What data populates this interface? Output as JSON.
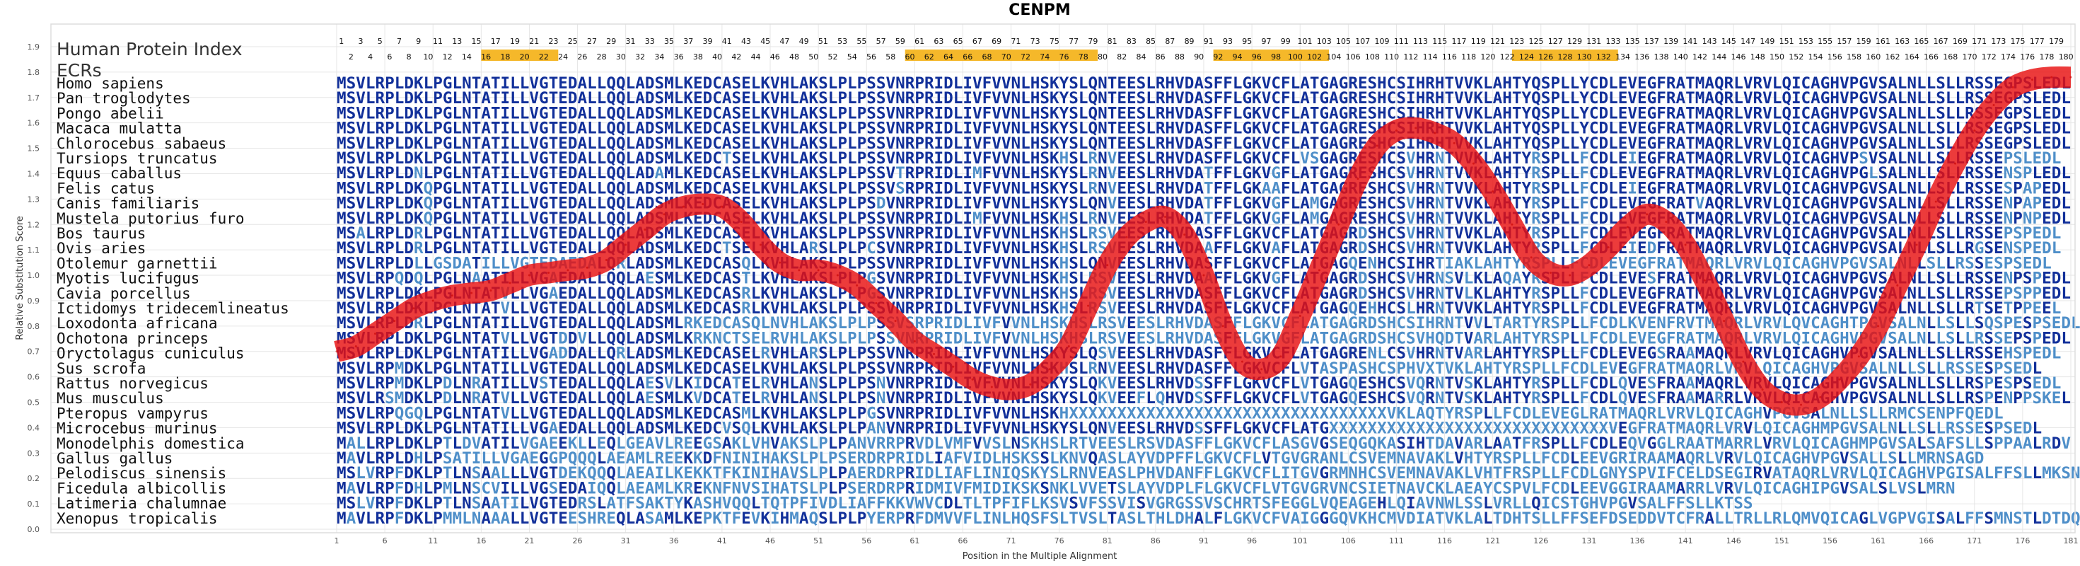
{
  "chart_data": {
    "type": "line",
    "title": "CENPM",
    "xlabel": "Position in the Multiple Alignment",
    "ylabel": "Relative Substitution Score",
    "xlim": [
      1,
      181
    ],
    "ylim": [
      0.0,
      1.9
    ],
    "x_ticks": [
      1,
      6,
      11,
      16,
      21,
      26,
      31,
      36,
      41,
      46,
      51,
      56,
      61,
      66,
      71,
      76,
      81,
      86,
      91,
      96,
      101,
      106,
      111,
      116,
      121,
      126,
      131,
      136,
      141,
      146,
      151,
      156,
      161,
      166,
      171,
      176,
      181
    ],
    "y_ticks": [
      0.0,
      0.1,
      0.2,
      0.3,
      0.4,
      0.5,
      0.6,
      0.7,
      0.8,
      0.9,
      1.0,
      1.1,
      1.2,
      1.3,
      1.4,
      1.5,
      1.6,
      1.7,
      1.8,
      1.9
    ],
    "y_tick_labels": [
      "0.0",
      "0.1",
      "0.2",
      "0.3",
      "0.4",
      "0.5",
      "0.6",
      "0.7",
      "0.8",
      "0.9",
      "1.0",
      "1.1",
      "1.2",
      "1.3",
      "1.4",
      "1.5",
      "1.6",
      "1.7",
      "1.8",
      "1.9"
    ],
    "grid": true,
    "header_label": "Human Protein Index",
    "ecr_label": "ECRs",
    "ecr_regions": [
      [
        16,
        23
      ],
      [
        60,
        79
      ],
      [
        92,
        103
      ],
      [
        123,
        133
      ]
    ],
    "residue_index": [
      1,
      2,
      3,
      4,
      5,
      6,
      7,
      8,
      9,
      10,
      11,
      12,
      13,
      14,
      15,
      16,
      17,
      18,
      19,
      20,
      21,
      22,
      23,
      24,
      25,
      26,
      27,
      28,
      29,
      30,
      31,
      32,
      33,
      34,
      35,
      36,
      37,
      38,
      39,
      40,
      41,
      42,
      43,
      44,
      45,
      46,
      47,
      48,
      49,
      50,
      51,
      52,
      53,
      54,
      55,
      56,
      57,
      58,
      59,
      60,
      61,
      62,
      63,
      64,
      65,
      66,
      67,
      68,
      69,
      70,
      71,
      72,
      73,
      74,
      75,
      76,
      77,
      78,
      79,
      80,
      81,
      82,
      83,
      84,
      85,
      86,
      87,
      88,
      89,
      90,
      91,
      92,
      93,
      94,
      95,
      96,
      97,
      98,
      99,
      100,
      101,
      102,
      103,
      104,
      105,
      106,
      107,
      108,
      109,
      110,
      111,
      112,
      113,
      114,
      115,
      116,
      117,
      118,
      119,
      120,
      121,
      122,
      123,
      124,
      125,
      126,
      127,
      128,
      129,
      130,
      131,
      132,
      133,
      134,
      135,
      136,
      137,
      138,
      139,
      140,
      141,
      142,
      143,
      144,
      145,
      146,
      147,
      148,
      149,
      150,
      151,
      152,
      153,
      154,
      155,
      156,
      157,
      158,
      159,
      160,
      161,
      162,
      163,
      164,
      165,
      166,
      167,
      168,
      169,
      170,
      171,
      172,
      173,
      174,
      175,
      176,
      177,
      178,
      179,
      180
    ],
    "species": [
      {
        "name": "Homo sapiens",
        "sequence": "MSVLRPLDKLPGLNTATILLVGTEDALLQQLADSMLKEDCASELKVHLAKSLPLPSSVNRPRIDLIVFVVNLHSKYSLQNTEESLRHVDASFFLGKVCFLATGAGRESHCSIHRHTVVKLAHTYQSPLLYCDLEVEGFRATMAQRLVRVLQICAGHVPGVSALNLLSLLRSSEGPSLEDL"
      },
      {
        "name": "Pan troglodytes",
        "sequence": "MSVLRPLDKLPGLNTATILLVGTEDALLQQLADSMLKEDCASELKVHLAKSLPLPSSVNRPRIDLIVFVVNLHSKYSLQNTEESLRHVDASFFLGKVCFLATGAGRESHCSIHRHTVVKLAHTYQSPLLYCDLEVEGFRATMAQRLVRVLQICAGHVPGVSALNLLSLLRSSEGPSLEDL"
      },
      {
        "name": "Pongo abelii",
        "sequence": "MSVLRPLDKLPGLNTATILLVGTEDALLQQLADSMLKEDCASELKVHLAKSLPLPSSVNRPRIDLIVFVVNLHSKYSLQNTEESLRHVDASFFLGKVCFLATGAGRESHCSIHRHTVVKLAHTYQSPLLYCDLEVEGFRATMAQRLVRVLQICAGHVPGVSALNLLSLLRSSEGPSLEDL"
      },
      {
        "name": "Macaca mulatta",
        "sequence": "MSVLRPLDKLPGLNTATILLVGTEDALLQQLADSMLKEDCASELKVHLAKSLPLPSSVNRPRIDLIVFVVNLHSKYSLQNTEESLRHVDASFFLGKVCFLATGAGRESHCSIHRHTVVKLAHTYQSPLLYCDLEVEGFRATMAQRLVRVLQICAGHVPGVSALNLLSLLRSSEGPSLEDL"
      },
      {
        "name": "Chlorocebus sabaeus",
        "sequence": "MSVLRPLDKLPGLNTATILLVGTEDALLQQLADSMLKEDCASELKVHLAKSLPLPSSVNRPRIDLIVFVVNLHSKYSLQNTEESLRHVDASFFLGKVCFLATGAGRESHCSIHRHTVVKLAHTYQSPLLYCDLEVEGFRATMAQRLVRVLQICAGHVPGVSALNLLSLLRSSEGPSLEDL"
      },
      {
        "name": "Tursiops truncatus",
        "sequence": "MSVLRPLDKLPGLNTATILLVGTEDALLQQLADSMLKEDCTSELKVHLAKSLPLPSSVNRPRIDLIVFVVNLHSKHSLRNVEESLRHVDASFFLGKVCFLVSGAGRESHCSVHRNTVVKLAHTYRSPLLFCDLEIEGFRATMAQRLVRVLQICAGHVPSVSALNLLSLLRSSEPSLEDL"
      },
      {
        "name": "Equus caballus",
        "sequence": "MSVLRPLDNLPGLNTATILLVGTEDALLQQLADAMLKEDCASELKVHLAKSLPLPSSVTRPRIDLIMFVVNLHSKYSLRNVEESLRHVDATFFLGKVGFLATGAGRESHCSVHRNTVVKLAHTYRSPLLFCDLEVEGFRATMAQRLVRVLQICAGHVPGLSALNLLSLLRSSENSPLEDL"
      },
      {
        "name": "Felis catus",
        "sequence": "MSVLRPLDKQPGLNTATILLVGTEDALLQQLADSMLKEDCASELKVHLAKSLPLPSSVSRPRIDLIVFVVNLHSKYSLRNVEESLRHVDATFFLGKAAFLATGAGRESHCSVHRNTVVKLAHTYRSPLLFCDLEIEGFRATMAQRLVRVLQICAGHVPGVSALNLLSLLRSSESPAPEDL"
      },
      {
        "name": "Canis familiaris",
        "sequence": "MSVLRPLDKQPGLNTATILLVGTEDALLQQLADSMLKEDCASELKVHLAKSLPLPSDVNRPRIDLIVFVVNLHSKYSLQNVEESLRHVDATFFLGKVGFLAMGAGRESHCSVHRNTVVKLAHTYRSPLLFCDLEVEGFRATVAQRLVRVLQICAGHVPGVSALNLLSLLRSSENPAPEDL"
      },
      {
        "name": "Mustela putorius furo",
        "sequence": "MSVLRPLDKQPGLNTATILLVGTEDALLQQLADSMLKEDCASELKVHLAKSLPLPSSVNRPRIDLIMFVVNLHSKHSLRNVEESLRHVDATFFLGKVGFLAMGAGRESHCSVHRNTVVKLAHTYRSPLLFCDLEVEGFRATMAQRLVRVLQICAGHVPGVSALNLLSLLRSSENPNPEDL"
      },
      {
        "name": "Bos taurus",
        "sequence": "MSALRPLDRLPGLNTATILLVGTEDALLQQLADSMLKEDCASELKVHLAKSLPLPSSVNRPRIDLIVFVVNLHSKHSLRSVEESLRHVDASFFLGKVCFLATGAGRDSHCSVHRNTVVKLAHTYRSPLLFCDLEVEGFRATMAQRLVRVLQICAGHVPGVSALNLLSLLRSSEPSPEDL"
      },
      {
        "name": "Ovis aries",
        "sequence": "MSVLRPLDRLPGLNTATILLVGTEDALLQQLADSMLKEDCTSELKVHLARSLPLPCSVNRPRIDLIVFVVNLHSKHSLRSVEESLRHVDAAFFLGKVAFLATGAGRDSHCSVHRNTVVKLAHTYRSPLLFCDLEIEDFRATMAQRLVRVLQICAGHVPGVSALNLLSLLRGSENSPEDL"
      },
      {
        "name": "Otolemur garnettii",
        "sequence": "MSVLRPLDLLGSDATILLVGTEDAEDALQRLADSMLKEDCASQLKVHLAKSLPLPSSVNRPRIDLIVFVVNLHSKHSLQNVEESLRHVDASFFLGKVCFLATGAGQENHCSIHRTIAKLAHTYRSPLLFCDLEVEGFRATMAQRLVRVLQICAGHVPGVSALNLLSLLRSSESPSEDL"
      },
      {
        "name": "Myotis lucifugus",
        "sequence": "MSVLRPQDQLPGLNAATILLVGAEDALLQQLAESMLKEDCASTLKVHLAKSLPLPGSVNRPRIDLIVFVVNLHSKHSLRSVEESLRHVDAAFFLGKVGFLATGAGRDSHCSVHRNSVLKLAQAYRSPLLFCDLEVESFRATMAQRLVRVLQICAGHVPGVSALNLLSLLRSSENPSPEDL"
      },
      {
        "name": "Cavia porcellus",
        "sequence": "MSVLRPLDKLPGLNTATVLLVGAEDALLQQLADSMLKEDCASRLKVHLAKSLPLPGSVNRPRIDLIVFVVNLHSKHSLRSVEESLRHVDASFFLGKVCFLATGAGRDSHCSVHRNTVLKLAHTYRSPLLFCDLEVEGFRATMAQRLVRVLQICAGHVPGVSALNLLSLLRSSEPSPPEDL"
      },
      {
        "name": "Ictidomys tridecemlineatus",
        "sequence": "MSVLRPLDKLPGLNTATVLLVGTEDALLQQLADSMLKEDCASRLKVHLAKSLPLPSSVNRPRIDLIVFVVNLHSKHSLRSVEESLRHVDASFFLGKVCFLATGAGQEHHCSLHRNTVVKLAHTYRSPLLFCDLEVEGFRATMAQRLVRVLQICAGHVPGVSALNLLSLLRTSETPPEEL"
      },
      {
        "name": "Loxodonta africana",
        "sequence": "MSVLRPLDRLPGLNTATILLVGTEDALLQQLADSMLRKEDCASQLNVHLAKSLPLPSSVSRPRIDLIVFVVNLHSKHSLRSVEESLRHVDASFFLGKVCFLATGAGRDSHCSIHRNTVVLTARTYRSPLLFCDLKVENFRVTMAQRLVRVLQVCAGHTPGVSALNLLSLLSQSPESPSEDL"
      },
      {
        "name": "Ochotona princeps",
        "sequence": "MSVLRPLDKLPGLNTATVLLVGTDDVLLQQLADSMLKRKNCTSELRVHLAKSLPLPSSVNRPRIDLIVFVVNLHSKHSLRSVEESLRHVDASFFLGKVGFLATGAGRDSHCSVHQDTVARLAHTYRSPLLFCDLEVEGFRATMAQRLVRVLQICAGHVPGVSALNLLSLLRSSEPSPEDL"
      },
      {
        "name": "Oryctolagus cuniculus",
        "sequence": "MSVLRPLDKLPGLNTATILLVGADDALLQRLADSMLKEDCASELRVHLARSLPLPSSVNRPRIDLIVFVVNLHSKYSLQSVEESLRHVDASFFLGKVCFLATGAGRENLCSVHRNTVARLAHTYRSPLLFCDLEVEGSRAAMAQRLVRVLQICAGHVPGVSALNLLSLLRSSEHSPEDL"
      },
      {
        "name": "Sus scrofa",
        "sequence": "MSVLRPMDKLPGLNTATILLVGTEDALLQQLADSMLKEDCASELKVHLAKSLPLPSSVNRPRIDLIVFVVNLHSKHSLRNVEESLRHVDASFFLGKVCFLVTASPASHCSPHVXTVKLAHTYRSPLLFCDLEVEGFRATMAQRLVRVLQICAGHVPGVSALNLLSLLRSSESPSEDL"
      },
      {
        "name": "Rattus norvegicus",
        "sequence": "MSVLRPMDKLPDLNRATILLVSTEDALLQQLAESVLKIDCATELRVHLANSLPLPSNVNRPRIDLIVFVVNLHSKYSLQKVEESLRHVDSSFFLGKVCFLVTGAGQESHCSVQRNTVSKLAHTYRSPLLFCDLQVESFRAAMAQRLVRVLQICAGHVPGVSALNLLSLLRSPESPSEDL"
      },
      {
        "name": "Mus musculus",
        "sequence": "MSVLRSMDKLPDLNRATVLLVGTEDALLQQLAESMLKVDCATELRVHLANSLPLPSNVNRPRIDLIVFVVNLHSKYSLQKVEEFLQHVDSSFFLGKVCFLVTGAGQESHCSVQRNTVSKLAHTYRSPLLFCDLQVESFRAAMARRLVRVLQICAGHVPGVSALNLLSLLRSPENPPSKEL"
      },
      {
        "name": "Pteropus vampyrus",
        "sequence": "MSVLRPQGQLPGLNTATVLLVGTEDALLQQLADSMLKEDCASMLKVHLAKSLPLPGSVNRPRIDLIVFVVNLHSKHXXXXXXXXXXXXXXXXXXXXXXXXXXXXXXXXXVKLAQTYRSPLLFCDLEVEGLRATMAQRLVRVLQICAGHVPGVSALNLLSLLRMCSENPFQEDL"
      },
      {
        "name": "Microcebus murinus",
        "sequence": "MSVLRPLDKLPGLNTATILLVGAEDALLQQLADSMLKEDCVSQLKVHLAKSLPLPANVNRPRIDLIVFVVNLHSKYSLQNVEESLRHVDSSFFLGKVCFLATGXXXXXXXXXXXXXXXXXXXXXXXXXXXXXVEGFRATMAQRLVRVLQICAGHMPGVSALNLLSLLRSSESPSEDL"
      },
      {
        "name": "Monodelphis domestica",
        "sequence": "MALLRPLDKLPTLDVATILVGAEEKLLEQLGEAVLREEGSAKLVHVAKSLPLPANVRRPRVDLVMFVVSLNSKHSLRTVEESLRSVDASFFLGKVCFLASGVGSEQGQKASIHTDAVARLAATFRSPLLFCDLEQVGGLRAATMARRLVRVLQICAGHMPGVSALSAFSLLSPPAALRDV"
      },
      {
        "name": "Gallus gallus",
        "sequence": "MAVLRPLDHLPSATILLVGAEGGPQQQLAEAMLREEKKDFNINIHAKSLPLPSERDRPRIDLIAFVIDLHSKSSLKNVQASLAYVDPFFLGKVCFLVTGVGRANLCSVEMNAVAKLVHTYRSPLLFCDLEEVGRIRAAMAQRLVRVLQICAGHVPGVSALLSLLMRNSAGD"
      },
      {
        "name": "Pelodiscus sinensis",
        "sequence": "MSLVRPFDKLPTLNSAALLLVGTDEKQQQLAEAILKEKKTFKINIHAVSLPLPAERDRPRIDLIAFLINIQSKYSLRNVEASLPHVDANFFLGKVCFLITGVGRMNHCSVEMNAVAKLVHTFRSPLLFCDLGNYSPVIFCELDSEGIRVATAQRLVRVLQICAGHVPGISALFFSLLMKSNSIDE"
      },
      {
        "name": "Ficedula albicollis",
        "sequence": "MAVLRPFDHLPMLNSCVILLVGSEDAIQQLAEAMLKREKNFNVSIHATSLPLPSERDRPRIDMIVFMIDIKSKSNKLVVETSLAYVDPLFLGKVCFLVTGVGRVNCSIETNAVCKLAEAYCSPVLFCDLEEVGGIRAAMARRLVRVLQICAGHIPGVSALSLVSLMRN"
      },
      {
        "name": "Latimeria chalumnae",
        "sequence": "MSLVRPFDKLPTLNSAATILVGTEDRSLATFSAKTYKASHVQQLTQTPFIVDLIAFFKKVWVCDLTLTPFIFLKSVSVFSSVISVGRGSSVSCHRTSFEGGLVQEAGEHLQIAVNWLSSLVRLLQICSTGHVPGVSALFFSLLKTSS"
      },
      {
        "name": "Xenopus tropicalis",
        "sequence": "MAVLRPFDKLPMMLNAAALLVGTEESHREQLASAMLKEPKTFEVKIHMAQSLPLPYERPRFDMVVFLINLHQSFSLTVSLTASLTHLDHALFLGKVCFVAIGGGQVKHCMVDIATVKLALTDHTSLLFFSEFDSEDDVTCFRALLTRLLRLQMVQICAGLVGPVGISALFFSMNSTLDTDQF"
      }
    ],
    "series": [
      {
        "name": "",
        "x": [
          1,
          3,
          5,
          7,
          9,
          11,
          13,
          15,
          17,
          19,
          21,
          23,
          25,
          27,
          29,
          31,
          33,
          35,
          37,
          39,
          41,
          43,
          45,
          47,
          49,
          51,
          53,
          55,
          57,
          59,
          61,
          63,
          65,
          67,
          69,
          71,
          73,
          75,
          77,
          79,
          81,
          83,
          85,
          87,
          89,
          91,
          93,
          95,
          97,
          99,
          101,
          103,
          105,
          107,
          109,
          111,
          113,
          115,
          117,
          119,
          121,
          123,
          125,
          127,
          129,
          131,
          133,
          135,
          137,
          139,
          141,
          143,
          145,
          147,
          149,
          151,
          153,
          155,
          157,
          159,
          161,
          163,
          165,
          167,
          169,
          171,
          173,
          175,
          177,
          179,
          181
        ],
        "y": [
          0.7,
          0.72,
          0.77,
          0.82,
          0.87,
          0.9,
          0.92,
          0.93,
          0.94,
          0.97,
          1.0,
          1.01,
          1.02,
          1.03,
          1.06,
          1.12,
          1.18,
          1.24,
          1.27,
          1.28,
          1.27,
          1.21,
          1.12,
          1.05,
          1.02,
          1.02,
          1.0,
          0.96,
          0.89,
          0.82,
          0.74,
          0.69,
          0.64,
          0.59,
          0.56,
          0.55,
          0.57,
          0.63,
          0.72,
          0.88,
          1.04,
          1.15,
          1.21,
          1.23,
          1.16,
          1.0,
          0.8,
          0.66,
          0.63,
          0.68,
          0.84,
          1.02,
          1.2,
          1.38,
          1.51,
          1.57,
          1.58,
          1.56,
          1.52,
          1.44,
          1.33,
          1.2,
          1.07,
          1.01,
          1.0,
          1.04,
          1.11,
          1.19,
          1.24,
          1.21,
          1.12,
          0.98,
          0.82,
          0.66,
          0.55,
          0.5,
          0.49,
          0.52,
          0.59,
          0.68,
          0.8,
          0.96,
          1.12,
          1.29,
          1.44,
          1.57,
          1.67,
          1.74,
          1.77,
          1.78,
          1.78
        ]
      }
    ]
  }
}
